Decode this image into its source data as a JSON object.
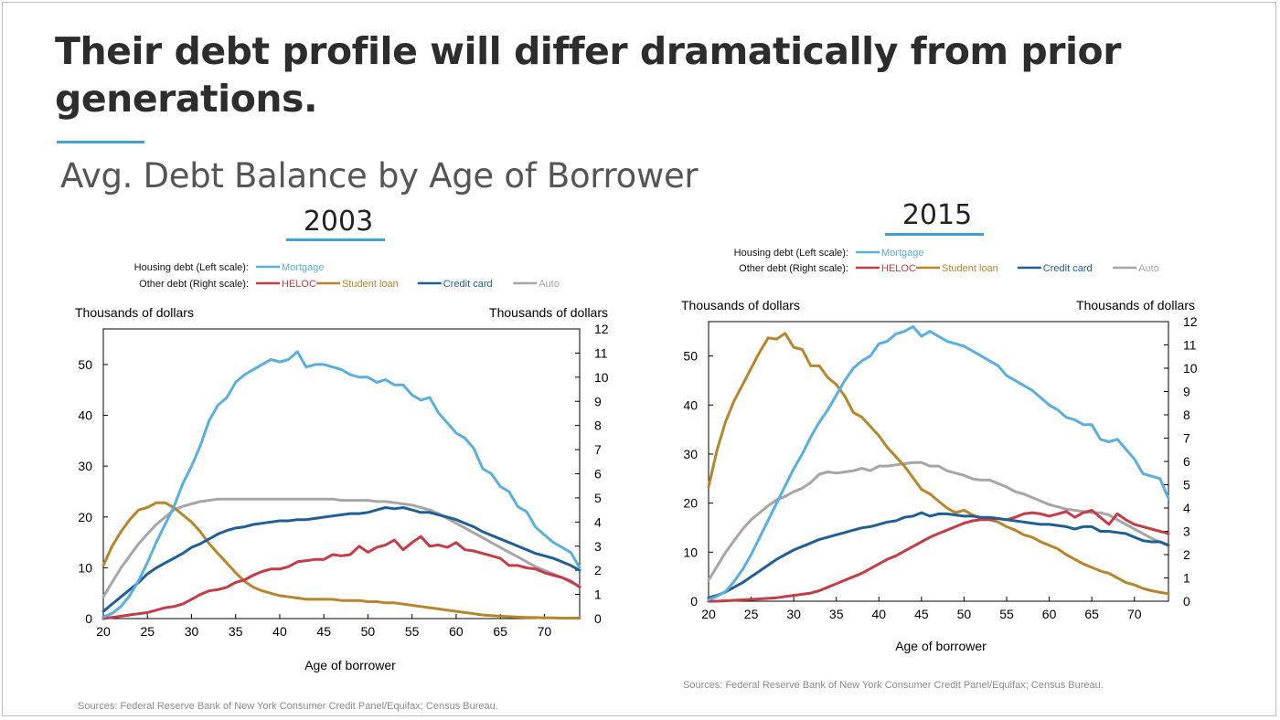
{
  "slide": {
    "title": "Their debt profile will differ dramatically from prior generations.",
    "subtitle": "Avg. Debt Balance by Age of Borrower"
  },
  "colors": {
    "Mortgage": "#5aaee0",
    "HELOC": "#c43c45",
    "Student loan": "#b7862a",
    "Credit card": "#1f5f96",
    "Auto": "#a6a6a6"
  },
  "chart_data": [
    {
      "type": "line",
      "year_label": "2003",
      "legend": {
        "housing_label": "Housing debt (Left scale):",
        "other_label": "Other debt (Right scale):",
        "housing_series": [
          "Mortgage"
        ],
        "other_series": [
          "HELOC",
          "Student loan",
          "Credit card",
          "Auto"
        ]
      },
      "ylabel_left": "Thousands of dollars",
      "ylabel_right": "Thousands of dollars",
      "xlabel": "Age of borrower",
      "xlim": [
        20,
        74
      ],
      "ylim_left": [
        0,
        57
      ],
      "ylim_right": [
        0,
        12
      ],
      "xticks": [
        20,
        25,
        30,
        35,
        40,
        45,
        50,
        55,
        60,
        65,
        70
      ],
      "yticks_left": [
        0,
        10,
        20,
        30,
        40,
        50
      ],
      "yticks_right": [
        0,
        1,
        2,
        3,
        4,
        5,
        6,
        7,
        8,
        9,
        10,
        11,
        12
      ],
      "x": [
        20,
        21,
        22,
        23,
        24,
        25,
        26,
        27,
        28,
        29,
        30,
        31,
        32,
        33,
        34,
        35,
        36,
        37,
        38,
        39,
        40,
        41,
        42,
        43,
        44,
        45,
        46,
        47,
        48,
        49,
        50,
        51,
        52,
        53,
        54,
        55,
        56,
        57,
        58,
        59,
        60,
        61,
        62,
        63,
        64,
        65,
        66,
        67,
        68,
        69,
        70,
        71,
        72,
        73,
        74
      ],
      "series": [
        {
          "name": "Mortgage",
          "axis": "left",
          "values": [
            0.3,
            1.0,
            2.4,
            4.5,
            7.5,
            11,
            15,
            18.5,
            22,
            26.5,
            30,
            34,
            39,
            42,
            43.5,
            46.5,
            48,
            49,
            50,
            51,
            50.5,
            51,
            52.5,
            49.5,
            50,
            50,
            49.5,
            49,
            48,
            47.5,
            47.5,
            46.5,
            47,
            46,
            46,
            44,
            43,
            43.5,
            40.5,
            38.5,
            36.5,
            35.5,
            33.5,
            29.5,
            28.5,
            26,
            25,
            22,
            21,
            18,
            16.5,
            15,
            14,
            13,
            10
          ]
        },
        {
          "name": "HELOC",
          "axis": "right",
          "values": [
            0,
            0.05,
            0.1,
            0.15,
            0.2,
            0.25,
            0.35,
            0.45,
            0.5,
            0.6,
            0.8,
            1.0,
            1.15,
            1.2,
            1.3,
            1.5,
            1.6,
            1.8,
            1.95,
            2.05,
            2.05,
            2.15,
            2.35,
            2.4,
            2.45,
            2.45,
            2.65,
            2.6,
            2.65,
            3.0,
            2.75,
            2.95,
            3.05,
            3.25,
            2.85,
            3.15,
            3.4,
            3.0,
            3.05,
            2.95,
            3.15,
            2.85,
            2.8,
            2.7,
            2.6,
            2.5,
            2.2,
            2.2,
            2.1,
            2.05,
            1.9,
            1.8,
            1.7,
            1.55,
            1.3
          ]
        },
        {
          "name": "Student loan",
          "axis": "right",
          "values": [
            2.2,
            3.0,
            3.6,
            4.1,
            4.5,
            4.6,
            4.8,
            4.8,
            4.6,
            4.3,
            4.0,
            3.6,
            3.1,
            2.7,
            2.3,
            1.9,
            1.55,
            1.3,
            1.15,
            1.05,
            0.95,
            0.9,
            0.85,
            0.8,
            0.8,
            0.8,
            0.8,
            0.75,
            0.75,
            0.75,
            0.7,
            0.7,
            0.65,
            0.65,
            0.6,
            0.55,
            0.5,
            0.45,
            0.4,
            0.35,
            0.3,
            0.25,
            0.2,
            0.15,
            0.12,
            0.1,
            0.08,
            0.06,
            0.05,
            0.04,
            0.03,
            0.03,
            0.02,
            0.02,
            0.02
          ]
        },
        {
          "name": "Credit card",
          "axis": "right",
          "values": [
            0.3,
            0.6,
            0.9,
            1.2,
            1.5,
            1.85,
            2.1,
            2.3,
            2.5,
            2.7,
            2.95,
            3.1,
            3.3,
            3.5,
            3.65,
            3.75,
            3.8,
            3.9,
            3.95,
            4.0,
            4.05,
            4.05,
            4.1,
            4.1,
            4.15,
            4.2,
            4.25,
            4.3,
            4.35,
            4.35,
            4.4,
            4.5,
            4.6,
            4.55,
            4.6,
            4.5,
            4.4,
            4.4,
            4.3,
            4.2,
            4.1,
            3.95,
            3.8,
            3.6,
            3.45,
            3.3,
            3.15,
            3.0,
            2.85,
            2.7,
            2.6,
            2.5,
            2.35,
            2.2,
            2.0
          ]
        },
        {
          "name": "Auto",
          "axis": "right",
          "values": [
            0.9,
            1.5,
            2.1,
            2.6,
            3.1,
            3.5,
            3.9,
            4.2,
            4.5,
            4.65,
            4.75,
            4.85,
            4.9,
            4.95,
            4.95,
            4.95,
            4.95,
            4.95,
            4.95,
            4.95,
            4.95,
            4.95,
            4.95,
            4.95,
            4.95,
            4.95,
            4.95,
            4.9,
            4.9,
            4.9,
            4.9,
            4.85,
            4.85,
            4.8,
            4.75,
            4.7,
            4.6,
            4.5,
            4.35,
            4.15,
            3.95,
            3.75,
            3.55,
            3.35,
            3.15,
            2.95,
            2.75,
            2.55,
            2.35,
            2.15,
            2.0,
            1.85,
            1.7,
            1.5,
            1.35
          ]
        }
      ],
      "source": "Sources: Federal Reserve Bank of New York Consumer Credit Panel/Equifax; Census Bureau."
    },
    {
      "type": "line",
      "year_label": "2015",
      "legend": {
        "housing_label": "Housing debt (Left scale):",
        "other_label": "Other debt (Right scale):",
        "housing_series": [
          "Mortgage"
        ],
        "other_series": [
          "HELOC",
          "Student loan",
          "Credit card",
          "Auto"
        ]
      },
      "ylabel_left": "Thousands of dollars",
      "ylabel_right": "Thousands of dollars",
      "xlabel": "Age of borrower",
      "xlim": [
        20,
        74
      ],
      "ylim_left": [
        0,
        57
      ],
      "ylim_right": [
        0,
        12
      ],
      "xticks": [
        20,
        25,
        30,
        35,
        40,
        45,
        50,
        55,
        60,
        65,
        70
      ],
      "yticks_left": [
        0,
        10,
        20,
        30,
        40,
        50
      ],
      "yticks_right": [
        0,
        1,
        2,
        3,
        4,
        5,
        6,
        7,
        8,
        9,
        10,
        11,
        12
      ],
      "x": [
        20,
        21,
        22,
        23,
        24,
        25,
        26,
        27,
        28,
        29,
        30,
        31,
        32,
        33,
        34,
        35,
        36,
        37,
        38,
        39,
        40,
        41,
        42,
        43,
        44,
        45,
        46,
        47,
        48,
        49,
        50,
        51,
        52,
        53,
        54,
        55,
        56,
        57,
        58,
        59,
        60,
        61,
        62,
        63,
        64,
        65,
        66,
        67,
        68,
        69,
        70,
        71,
        72,
        73,
        74
      ],
      "series": [
        {
          "name": "Mortgage",
          "axis": "left",
          "values": [
            0.3,
            1.0,
            2.0,
            4.0,
            6.5,
            9.5,
            13,
            16.5,
            20,
            23.5,
            27,
            30,
            33.5,
            36.5,
            39,
            42,
            45,
            47.5,
            49,
            50,
            52.5,
            53,
            54.5,
            55,
            56,
            54,
            55,
            54,
            53,
            52.5,
            52,
            51,
            50,
            49,
            48,
            46,
            45,
            44,
            43,
            41.5,
            40,
            39,
            37.5,
            37,
            36,
            36,
            33,
            32.5,
            33,
            31,
            29,
            26,
            25.5,
            25,
            21
          ]
        },
        {
          "name": "HELOC",
          "axis": "right",
          "values": [
            0,
            0,
            0.02,
            0.04,
            0.06,
            0.08,
            0.1,
            0.12,
            0.15,
            0.2,
            0.25,
            0.3,
            0.35,
            0.45,
            0.6,
            0.75,
            0.9,
            1.05,
            1.2,
            1.4,
            1.6,
            1.8,
            1.95,
            2.15,
            2.35,
            2.55,
            2.75,
            2.9,
            3.05,
            3.2,
            3.35,
            3.45,
            3.5,
            3.5,
            3.55,
            3.5,
            3.6,
            3.75,
            3.8,
            3.75,
            3.65,
            3.75,
            3.85,
            3.6,
            3.8,
            3.9,
            3.6,
            3.3,
            3.75,
            3.5,
            3.3,
            3.2,
            3.1,
            3.0,
            2.9
          ]
        },
        {
          "name": "Student loan",
          "axis": "right",
          "values": [
            4.9,
            6.5,
            7.7,
            8.6,
            9.3,
            10.0,
            10.7,
            11.3,
            11.25,
            11.5,
            10.9,
            10.8,
            10.1,
            10.1,
            9.6,
            9.3,
            8.8,
            8.1,
            7.9,
            7.5,
            7.1,
            6.6,
            6.2,
            5.8,
            5.3,
            4.8,
            4.6,
            4.3,
            4.0,
            3.8,
            3.9,
            3.7,
            3.55,
            3.5,
            3.4,
            3.2,
            3.05,
            2.85,
            2.75,
            2.55,
            2.4,
            2.25,
            2.0,
            1.8,
            1.6,
            1.45,
            1.3,
            1.2,
            1.0,
            0.8,
            0.7,
            0.55,
            0.45,
            0.38,
            0.32
          ]
        },
        {
          "name": "Credit card",
          "axis": "right",
          "values": [
            0.15,
            0.25,
            0.4,
            0.6,
            0.8,
            1.05,
            1.3,
            1.55,
            1.8,
            2.0,
            2.2,
            2.35,
            2.5,
            2.65,
            2.75,
            2.85,
            2.95,
            3.05,
            3.15,
            3.2,
            3.3,
            3.4,
            3.45,
            3.6,
            3.65,
            3.8,
            3.65,
            3.75,
            3.75,
            3.7,
            3.65,
            3.65,
            3.6,
            3.6,
            3.55,
            3.5,
            3.45,
            3.4,
            3.35,
            3.3,
            3.3,
            3.25,
            3.2,
            3.1,
            3.2,
            3.2,
            3.0,
            3.0,
            2.95,
            2.9,
            2.75,
            2.6,
            2.55,
            2.55,
            2.4
          ]
        },
        {
          "name": "Auto",
          "axis": "right",
          "values": [
            0.9,
            1.5,
            2.1,
            2.6,
            3.1,
            3.5,
            3.8,
            4.1,
            4.35,
            4.5,
            4.7,
            4.85,
            5.1,
            5.45,
            5.55,
            5.5,
            5.55,
            5.6,
            5.7,
            5.6,
            5.8,
            5.8,
            5.85,
            5.9,
            5.95,
            5.95,
            5.8,
            5.8,
            5.6,
            5.5,
            5.4,
            5.25,
            5.2,
            5.2,
            5.05,
            4.9,
            4.7,
            4.6,
            4.45,
            4.3,
            4.15,
            4.05,
            3.95,
            3.9,
            3.85,
            3.8,
            3.8,
            3.7,
            3.5,
            3.3,
            3.1,
            2.9,
            2.7,
            2.55,
            2.4
          ]
        }
      ],
      "source": "Sources: Federal Reserve Bank of New York Consumer Credit Panel/Equifax; Census Bureau."
    }
  ]
}
